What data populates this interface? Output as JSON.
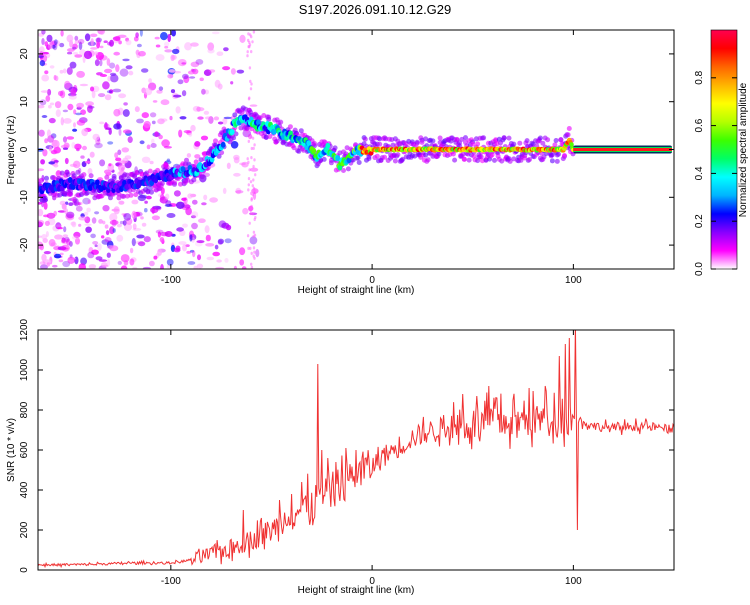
{
  "title": "S197.2026.091.10.12.G29",
  "chart_data": [
    {
      "type": "heatmap",
      "xlabel": "Height of straight line (km)",
      "ylabel": "Frequency (Hz)",
      "xlim": [
        -166,
        150
      ],
      "ylim": [
        -25,
        25
      ],
      "xticks": [
        -100,
        0,
        100
      ],
      "yticks": [
        -20,
        -10,
        0,
        10,
        20
      ],
      "colorbar": {
        "label": "Normalized spectral amplitude",
        "range": [
          0,
          1
        ],
        "ticks": [
          0.0,
          0.2,
          0.4,
          0.6,
          0.8
        ],
        "colors": [
          "#ffffff",
          "#ff00ff",
          "#8800ff",
          "#0000ff",
          "#00b4ff",
          "#00ffff",
          "#00ff64",
          "#3cff00",
          "#b4ff00",
          "#ffff00",
          "#ffb400",
          "#ff6400",
          "#ff0000",
          "#ff0050"
        ]
      },
      "ridge": [
        [
          -166,
          -8.5
        ],
        [
          -150,
          -7
        ],
        [
          -130,
          -8
        ],
        [
          -110,
          -6.5
        ],
        [
          -98,
          -5
        ],
        [
          -88,
          -4.5
        ],
        [
          -80,
          -2
        ],
        [
          -72,
          3
        ],
        [
          -65,
          7
        ],
        [
          -58,
          5
        ],
        [
          -50,
          4.5
        ],
        [
          -44,
          3
        ],
        [
          -38,
          2.5
        ],
        [
          -32,
          1
        ],
        [
          -28,
          -1.5
        ],
        [
          -22,
          0
        ],
        [
          -16,
          -3
        ],
        [
          -10,
          -1
        ],
        [
          -5,
          0
        ],
        [
          0,
          0
        ],
        [
          20,
          0
        ],
        [
          40,
          0
        ],
        [
          60,
          0
        ],
        [
          80,
          0
        ],
        [
          95,
          0
        ],
        [
          98,
          2
        ],
        [
          100,
          0
        ],
        [
          150,
          0
        ]
      ]
    },
    {
      "type": "line",
      "xlabel": "Height of straight line (km)",
      "ylabel": "SNR (10 * v/v)",
      "xlim": [
        -166,
        150
      ],
      "ylim": [
        0,
        1200
      ],
      "xticks": [
        -100,
        0,
        100
      ],
      "yticks": [
        0,
        200,
        400,
        600,
        800,
        1000,
        1200
      ],
      "color": "#f03232",
      "series": [
        {
          "name": "SNR",
          "x": [
            -166,
            -140,
            -120,
            -100,
            -90,
            -80,
            -70,
            -60,
            -50,
            -40,
            -30,
            -20,
            -10,
            0,
            10,
            20,
            30,
            40,
            50,
            60,
            70,
            80,
            90,
            100,
            110,
            120,
            130,
            140,
            150
          ],
          "y": [
            25,
            28,
            35,
            35,
            50,
            80,
            110,
            150,
            200,
            280,
            330,
            400,
            470,
            520,
            600,
            660,
            700,
            720,
            730,
            740,
            740,
            750,
            760,
            760,
            720,
            710,
            720,
            715,
            700
          ],
          "spikes": [
            [
              -64,
              300
            ],
            [
              -55,
              260
            ],
            [
              -46,
              350
            ],
            [
              -40,
              380
            ],
            [
              -35,
              440
            ],
            [
              -27,
              1030
            ],
            [
              -25,
              600
            ],
            [
              -22,
              560
            ],
            [
              -18,
              540
            ],
            [
              -13,
              610
            ],
            [
              -8,
              600
            ],
            [
              -3,
              560
            ],
            [
              5,
              600
            ],
            [
              45,
              880
            ],
            [
              52,
              870
            ],
            [
              58,
              920
            ],
            [
              62,
              860
            ],
            [
              70,
              850
            ],
            [
              78,
              910
            ],
            [
              86,
              920
            ],
            [
              93,
              1070
            ],
            [
              96,
              1130
            ],
            [
              98,
              1160
            ],
            [
              101,
              1240
            ],
            [
              102,
              200
            ],
            [
              104,
              750
            ]
          ]
        }
      ]
    }
  ]
}
